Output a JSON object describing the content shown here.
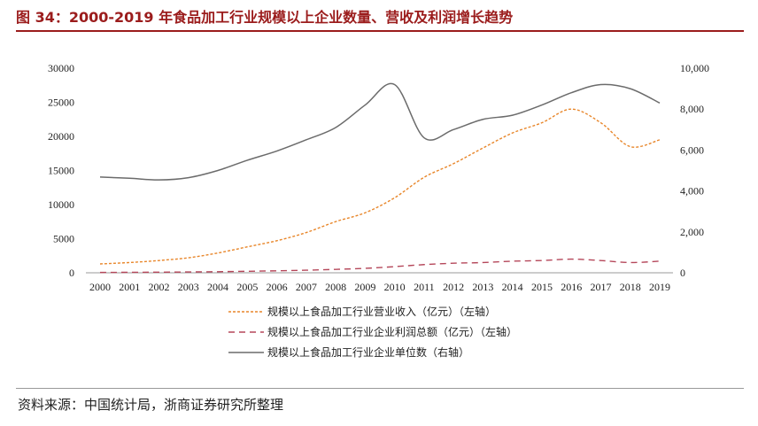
{
  "title": "图 34：2000-2019 年食品加工行业规模以上企业数量、营收及利润增长趋势",
  "source": "资料来源：中国统计局，浙商证券研究所整理",
  "chart_data": {
    "type": "line",
    "x": [
      "2000",
      "2001",
      "2002",
      "2003",
      "2004",
      "2005",
      "2006",
      "2007",
      "2008",
      "2009",
      "2010",
      "2011",
      "2012",
      "2013",
      "2014",
      "2015",
      "2016",
      "2017",
      "2018",
      "2019"
    ],
    "left_axis": {
      "ylim": [
        0,
        30000
      ],
      "ticks": [
        "0",
        "5000",
        "10000",
        "15000",
        "20000",
        "25000",
        "30000"
      ]
    },
    "right_axis": {
      "ylim": [
        0,
        10000
      ],
      "ticks": [
        "0",
        "2,000",
        "4,000",
        "6,000",
        "8,000",
        "10,000"
      ]
    },
    "grid": false,
    "legend_position": "bottom",
    "series": [
      {
        "name": "规模以上食品加工行业营业收入（亿元）（左轴）",
        "axis": "left",
        "style": "dotted",
        "color": "#e8862a",
        "values": [
          1300,
          1500,
          1800,
          2200,
          2900,
          3800,
          4700,
          5900,
          7500,
          8800,
          11000,
          14000,
          16000,
          18300,
          20500,
          22000,
          24000,
          22000,
          18500,
          19500
        ]
      },
      {
        "name": "规模以上食品加工行业企业利润总额（亿元）（左轴）",
        "axis": "left",
        "style": "dashed",
        "color": "#b5475a",
        "values": [
          50,
          70,
          90,
          120,
          160,
          220,
          290,
          380,
          500,
          650,
          900,
          1200,
          1400,
          1500,
          1700,
          1800,
          2000,
          1800,
          1500,
          1700
        ]
      },
      {
        "name": "规模以上食品加工行业企业单位数（右轴）",
        "axis": "right",
        "style": "solid",
        "color": "#6b6b6b",
        "values": [
          4680,
          4620,
          4540,
          4650,
          5000,
          5500,
          5950,
          6500,
          7100,
          8200,
          9200,
          6600,
          7000,
          7500,
          7700,
          8200,
          8800,
          9200,
          9000,
          8300
        ]
      }
    ]
  }
}
